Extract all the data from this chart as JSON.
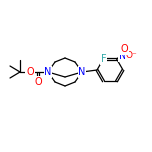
{
  "bg_color": "#ffffff",
  "bond_color": "#000000",
  "atom_colors": {
    "N": "#0000ff",
    "O": "#ff0000",
    "F": "#33aaaa",
    "C": "#000000"
  },
  "figsize": [
    1.52,
    1.52
  ],
  "dpi": 100
}
